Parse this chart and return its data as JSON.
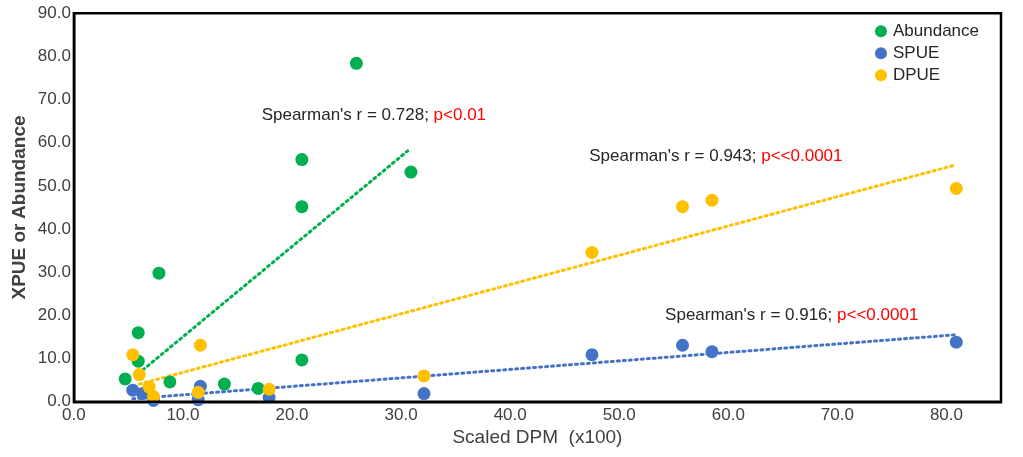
{
  "chart_data": {
    "type": "scatter",
    "xlabel": "Scaled DPM  (x100)",
    "ylabel": "XPUE or Abundance",
    "xlim": [
      0,
      85
    ],
    "xticks": [
      {
        "value": 0,
        "label": "0.0"
      },
      {
        "value": 10,
        "label": "10.0"
      },
      {
        "value": 20,
        "label": "20.0"
      },
      {
        "value": 30,
        "label": "30.0"
      },
      {
        "value": 40,
        "label": "40.0"
      },
      {
        "value": 50,
        "label": "50.0"
      },
      {
        "value": 60,
        "label": "60.0"
      },
      {
        "value": 70,
        "label": "70.0"
      },
      {
        "value": 80,
        "label": "80.0"
      }
    ],
    "ylim": [
      0,
      90
    ],
    "yticks": [
      {
        "value": 0,
        "label": "0.0"
      },
      {
        "value": 10,
        "label": "10.0"
      },
      {
        "value": 20,
        "label": "20.0"
      },
      {
        "value": 30,
        "label": "30.0"
      },
      {
        "value": 40,
        "label": "40.0"
      },
      {
        "value": 50,
        "label": "50.0"
      },
      {
        "value": 60,
        "label": "60.0"
      },
      {
        "value": 70,
        "label": "70.0"
      },
      {
        "value": 80,
        "label": "80.0"
      },
      {
        "value": 90,
        "label": "90.0"
      }
    ],
    "grid": false,
    "legend": "top right",
    "marker": "circle",
    "series": [
      {
        "name": "Abundance",
        "color": "#00b050",
        "x": [
          25.9,
          20.9,
          30.9,
          20.9,
          7.8,
          5.9,
          5.9,
          4.7,
          8.8,
          13.8,
          16.9,
          20.9
        ],
        "values": [
          78.4,
          56.1,
          53.2,
          45.2,
          29.8,
          16.0,
          9.4,
          5.3,
          4.6,
          4.1,
          3.1,
          9.7
        ]
      },
      {
        "name": "SPUE",
        "color": "#4472c4",
        "x": [
          5.4,
          6.3,
          7.3,
          11.6,
          11.4,
          17.9,
          32.1,
          47.5,
          55.8,
          58.5,
          80.9
        ],
        "values": [
          2.7,
          1.9,
          0.3,
          3.6,
          0.5,
          1.0,
          1.9,
          10.9,
          13.1,
          11.6,
          13.8
        ]
      },
      {
        "name": "DPUE",
        "color": "#ffc000",
        "x": [
          5.4,
          6.0,
          6.9,
          7.3,
          11.6,
          11.4,
          17.9,
          32.1,
          47.5,
          55.8,
          58.5,
          80.9
        ],
        "values": [
          10.9,
          6.3,
          3.4,
          1.2,
          13.1,
          2.2,
          2.9,
          6.0,
          34.6,
          45.2,
          46.7,
          49.4
        ]
      },
      {
        "type": "line",
        "line_style": "dotted",
        "marker": "none",
        "color": "#00b050",
        "x": [
          5.9,
          30.6
        ],
        "values": [
          6.5,
          58.1
        ]
      },
      {
        "type": "line",
        "line_style": "dotted",
        "marker": "none",
        "color": "#ffc000",
        "x": [
          6.0,
          80.9
        ],
        "values": [
          4.1,
          54.9
        ]
      },
      {
        "type": "line",
        "line_style": "dotted",
        "marker": "none",
        "color": "#4472c4",
        "x": [
          5.4,
          80.7
        ],
        "values": [
          0.7,
          15.5
        ]
      }
    ],
    "annotations": [
      "Spearman's r = 0.728; p<0.01",
      "Spearman's r = 0.943; p<<0.0001",
      "Spearman's r = 0.916; p<<0.0001"
    ]
  }
}
